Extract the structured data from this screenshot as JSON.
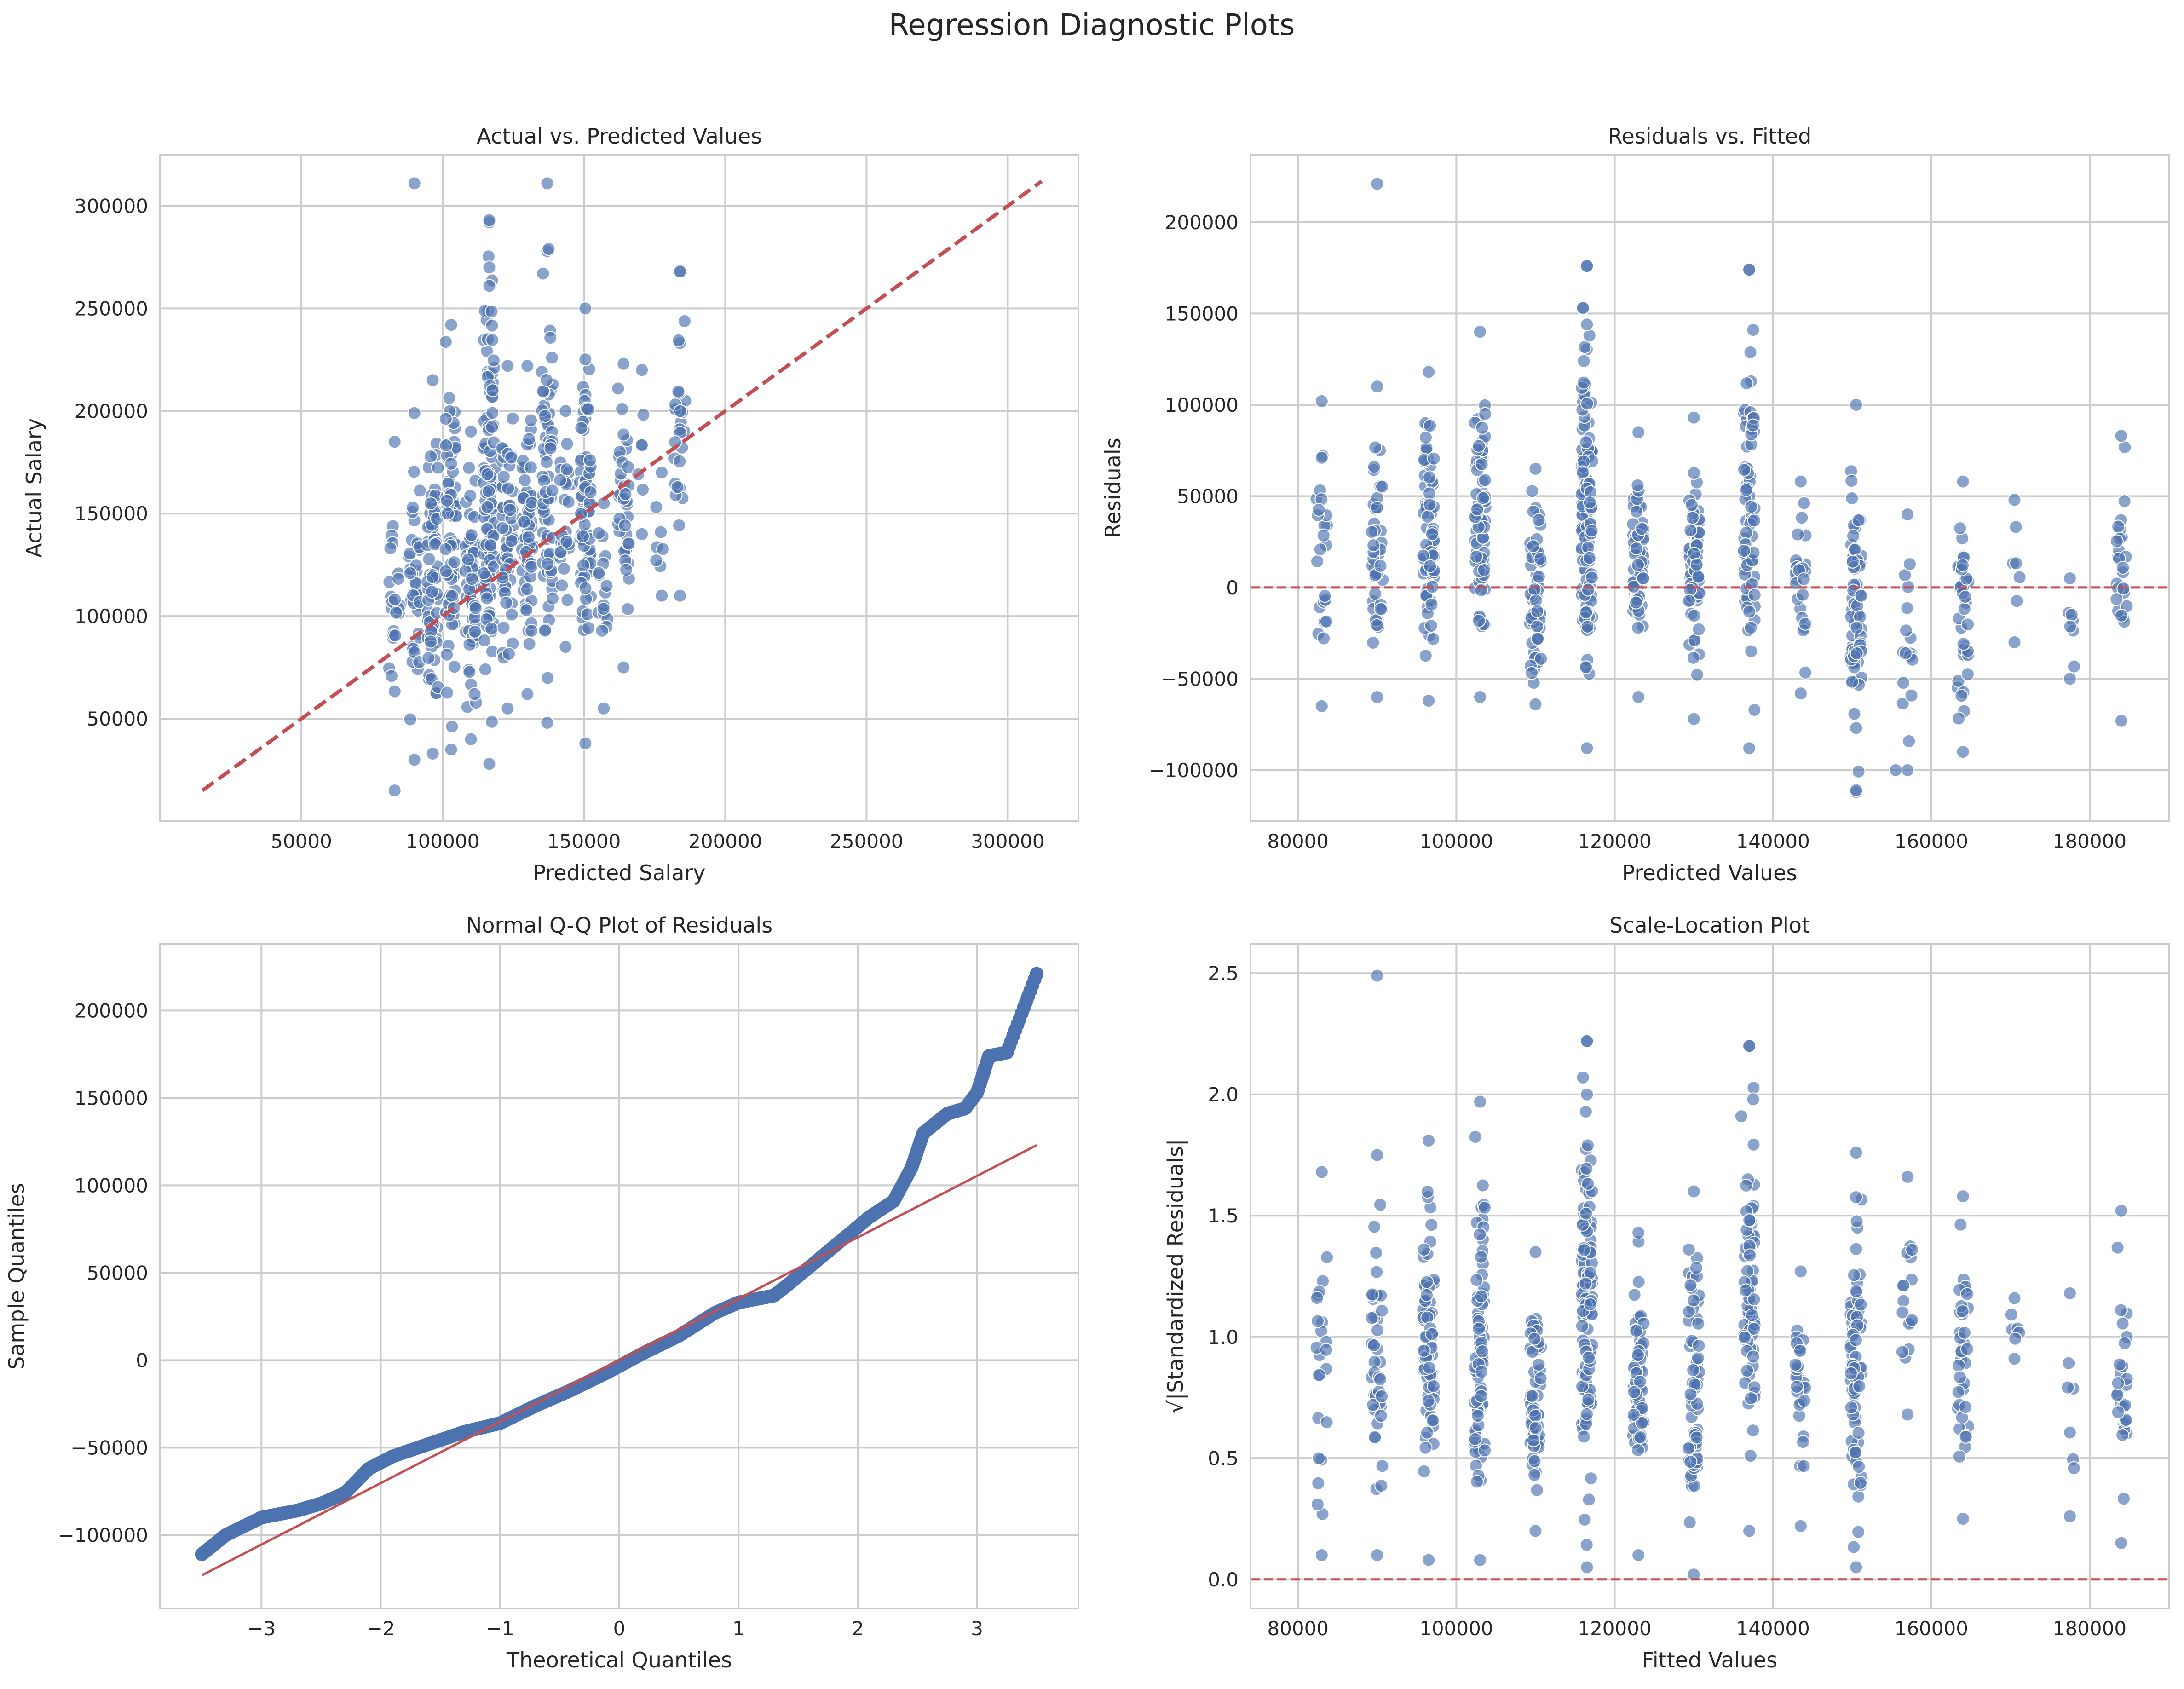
{
  "figure_title": "Regression Diagnostic Plots",
  "colors": {
    "points": "#4c72b0",
    "reference": "#c44e52",
    "grid": "#cccccc"
  },
  "chart_data": [
    {
      "id": "avp",
      "type": "scatter",
      "title": "Actual vs. Predicted Values",
      "xlabel": "Predicted Salary",
      "ylabel": "Actual Salary",
      "xlim": [
        0,
        325000
      ],
      "ylim": [
        0,
        325000
      ],
      "xticks": [
        50000,
        100000,
        150000,
        200000,
        250000,
        300000
      ],
      "yticks": [
        50000,
        100000,
        150000,
        200000,
        250000,
        300000
      ],
      "xtick_labels": [
        "50000",
        "100000",
        "150000",
        "200000",
        "250000",
        "300000"
      ],
      "ytick_labels": [
        "50000",
        "100000",
        "150000",
        "200000",
        "250000",
        "300000"
      ],
      "reference_line": {
        "style": "dashed",
        "from": [
          15000,
          15000
        ],
        "to": [
          312000,
          312000
        ]
      },
      "clusters": [
        {
          "x": 83000,
          "n": 22,
          "y_range": [
            15000,
            185000
          ]
        },
        {
          "x": 90000,
          "n": 40,
          "y_range": [
            30000,
            199000
          ]
        },
        {
          "x": 96500,
          "n": 70,
          "y_range": [
            33000,
            215000
          ]
        },
        {
          "x": 103000,
          "n": 70,
          "y_range": [
            35000,
            242000
          ]
        },
        {
          "x": 110000,
          "n": 60,
          "y_range": [
            40000,
            190000
          ]
        },
        {
          "x": 116500,
          "n": 110,
          "y_range": [
            28000,
            292000
          ]
        },
        {
          "x": 123000,
          "n": 60,
          "y_range": [
            55000,
            222000
          ]
        },
        {
          "x": 130000,
          "n": 60,
          "y_range": [
            62000,
            222000
          ]
        },
        {
          "x": 137000,
          "n": 65,
          "y_range": [
            48000,
            278000
          ]
        },
        {
          "x": 143500,
          "n": 25,
          "y_range": [
            85000,
            200000
          ]
        },
        {
          "x": 150500,
          "n": 70,
          "y_range": [
            38000,
            250000
          ]
        },
        {
          "x": 157000,
          "n": 15,
          "y_range": [
            55000,
            155000
          ]
        },
        {
          "x": 164000,
          "n": 35,
          "y_range": [
            75000,
            223000
          ]
        },
        {
          "x": 170500,
          "n": 5,
          "y_range": [
            140000,
            220000
          ]
        },
        {
          "x": 177500,
          "n": 6,
          "y_range": [
            110000,
            170000
          ]
        },
        {
          "x": 184000,
          "n": 25,
          "y_range": [
            110000,
            268000
          ]
        }
      ],
      "highlight_points": [
        {
          "x": 90000,
          "y": 311000
        },
        {
          "x": 137000,
          "y": 311000
        },
        {
          "x": 116500,
          "y": 293000
        },
        {
          "x": 137500,
          "y": 279000
        },
        {
          "x": 135500,
          "y": 267000
        },
        {
          "x": 116500,
          "y": 261000
        },
        {
          "x": 116500,
          "y": 270000
        },
        {
          "x": 184000,
          "y": 268000
        }
      ]
    },
    {
      "id": "rvf",
      "type": "scatter",
      "title": "Residuals vs. Fitted",
      "xlabel": "Predicted Values",
      "ylabel": "Residuals",
      "xlim": [
        74000,
        190000
      ],
      "ylim": [
        -128000,
        237000
      ],
      "xticks": [
        80000,
        100000,
        120000,
        140000,
        160000,
        180000
      ],
      "yticks": [
        -100000,
        -50000,
        0,
        50000,
        100000,
        150000,
        200000
      ],
      "xtick_labels": [
        "80000",
        "100000",
        "120000",
        "140000",
        "160000",
        "180000"
      ],
      "ytick_labels": [
        "−100000",
        "−50000",
        "0",
        "50000",
        "100000",
        "150000",
        "200000"
      ],
      "reference_line": {
        "style": "dashed",
        "y": 0
      },
      "clusters": [
        {
          "x": 83000,
          "n": 22,
          "y_range": [
            -65000,
            102000
          ]
        },
        {
          "x": 90000,
          "n": 40,
          "y_range": [
            -60000,
            110000
          ]
        },
        {
          "x": 96500,
          "n": 70,
          "y_range": [
            -62000,
            118000
          ]
        },
        {
          "x": 103000,
          "n": 70,
          "y_range": [
            -60000,
            140000
          ]
        },
        {
          "x": 110000,
          "n": 60,
          "y_range": [
            -64000,
            65000
          ]
        },
        {
          "x": 116500,
          "n": 110,
          "y_range": [
            -88000,
            176000
          ]
        },
        {
          "x": 123000,
          "n": 60,
          "y_range": [
            -60000,
            85000
          ]
        },
        {
          "x": 130000,
          "n": 60,
          "y_range": [
            -72000,
            93000
          ]
        },
        {
          "x": 137000,
          "n": 65,
          "y_range": [
            -88000,
            174000
          ]
        },
        {
          "x": 143500,
          "n": 25,
          "y_range": [
            -58000,
            58000
          ]
        },
        {
          "x": 150500,
          "n": 70,
          "y_range": [
            -112000,
            100000
          ]
        },
        {
          "x": 157000,
          "n": 15,
          "y_range": [
            -100000,
            40000
          ]
        },
        {
          "x": 164000,
          "n": 35,
          "y_range": [
            -90000,
            58000
          ]
        },
        {
          "x": 170500,
          "n": 5,
          "y_range": [
            -30000,
            48000
          ]
        },
        {
          "x": 177500,
          "n": 6,
          "y_range": [
            -50000,
            5000
          ]
        },
        {
          "x": 184000,
          "n": 25,
          "y_range": [
            -73000,
            83000
          ]
        }
      ],
      "highlight_points": [
        {
          "x": 90000,
          "y": 221000
        },
        {
          "x": 116500,
          "y": 176000
        },
        {
          "x": 137000,
          "y": 174000
        },
        {
          "x": 116000,
          "y": 153000
        },
        {
          "x": 116500,
          "y": 144000
        },
        {
          "x": 137500,
          "y": 141000
        },
        {
          "x": 150500,
          "y": -111000
        },
        {
          "x": 155500,
          "y": -100000
        }
      ]
    },
    {
      "id": "qq",
      "type": "scatter",
      "title": "Normal Q-Q Plot of Residuals",
      "xlabel": "Theoretical Quantiles",
      "ylabel": "Sample Quantiles",
      "xlim": [
        -3.85,
        3.85
      ],
      "ylim": [
        -142000,
        238000
      ],
      "xticks": [
        -3,
        -2,
        -1,
        0,
        1,
        2,
        3
      ],
      "yticks": [
        -100000,
        -50000,
        0,
        50000,
        100000,
        150000,
        200000
      ],
      "xtick_labels": [
        "−3",
        "−2",
        "−1",
        "0",
        "1",
        "2",
        "3"
      ],
      "ytick_labels": [
        "−100000",
        "−50000",
        "0",
        "50000",
        "100000",
        "150000",
        "200000"
      ],
      "reference_line": {
        "style": "solid",
        "from": [
          -3.5,
          -123000
        ],
        "to": [
          3.5,
          123000
        ]
      },
      "quantile_curve": [
        {
          "x": -3.5,
          "y": -111000
        },
        {
          "x": -3.3,
          "y": -100000
        },
        {
          "x": -3.0,
          "y": -90000
        },
        {
          "x": -2.7,
          "y": -86000
        },
        {
          "x": -2.5,
          "y": -82000
        },
        {
          "x": -2.3,
          "y": -76000
        },
        {
          "x": -2.1,
          "y": -62000
        },
        {
          "x": -1.9,
          "y": -55000
        },
        {
          "x": -1.6,
          "y": -48000
        },
        {
          "x": -1.3,
          "y": -41000
        },
        {
          "x": -1.0,
          "y": -36000
        },
        {
          "x": -0.7,
          "y": -26000
        },
        {
          "x": -0.4,
          "y": -17000
        },
        {
          "x": -0.1,
          "y": -7000
        },
        {
          "x": 0.2,
          "y": 4000
        },
        {
          "x": 0.5,
          "y": 14000
        },
        {
          "x": 0.8,
          "y": 27000
        },
        {
          "x": 1.0,
          "y": 33000
        },
        {
          "x": 1.3,
          "y": 37000
        },
        {
          "x": 1.5,
          "y": 48000
        },
        {
          "x": 1.8,
          "y": 65000
        },
        {
          "x": 2.1,
          "y": 82000
        },
        {
          "x": 2.3,
          "y": 91000
        },
        {
          "x": 2.45,
          "y": 110000
        },
        {
          "x": 2.55,
          "y": 130000
        },
        {
          "x": 2.75,
          "y": 141000
        },
        {
          "x": 2.9,
          "y": 144000
        },
        {
          "x": 3.0,
          "y": 153000
        },
        {
          "x": 3.1,
          "y": 174000
        },
        {
          "x": 3.25,
          "y": 176000
        },
        {
          "x": 3.5,
          "y": 221000
        }
      ]
    },
    {
      "id": "scl",
      "type": "scatter",
      "title": "Scale-Location Plot",
      "xlabel": "Fitted Values",
      "ylabel": "√|Standardized Residuals|",
      "xlim": [
        74000,
        190000
      ],
      "ylim": [
        -0.12,
        2.62
      ],
      "xticks": [
        80000,
        100000,
        120000,
        140000,
        160000,
        180000
      ],
      "yticks": [
        0.0,
        0.5,
        1.0,
        1.5,
        2.0,
        2.5
      ],
      "xtick_labels": [
        "80000",
        "100000",
        "120000",
        "140000",
        "160000",
        "180000"
      ],
      "ytick_labels": [
        "0.0",
        "0.5",
        "1.0",
        "1.5",
        "2.0",
        "2.5"
      ],
      "reference_line": {
        "style": "dashed",
        "y": 0
      },
      "clusters": [
        {
          "x": 83000,
          "n": 22,
          "y_range": [
            0.1,
            1.68
          ]
        },
        {
          "x": 90000,
          "n": 40,
          "y_range": [
            0.1,
            1.75
          ]
        },
        {
          "x": 96500,
          "n": 70,
          "y_range": [
            0.08,
            1.81
          ]
        },
        {
          "x": 103000,
          "n": 70,
          "y_range": [
            0.08,
            1.97
          ]
        },
        {
          "x": 110000,
          "n": 60,
          "y_range": [
            0.2,
            1.35
          ]
        },
        {
          "x": 116500,
          "n": 110,
          "y_range": [
            0.05,
            2.22
          ]
        },
        {
          "x": 123000,
          "n": 60,
          "y_range": [
            0.1,
            1.43
          ]
        },
        {
          "x": 130000,
          "n": 60,
          "y_range": [
            0.02,
            1.6
          ]
        },
        {
          "x": 137000,
          "n": 65,
          "y_range": [
            0.2,
            2.2
          ]
        },
        {
          "x": 143500,
          "n": 25,
          "y_range": [
            0.22,
            1.27
          ]
        },
        {
          "x": 150500,
          "n": 70,
          "y_range": [
            0.05,
            1.76
          ]
        },
        {
          "x": 157000,
          "n": 15,
          "y_range": [
            0.68,
            1.66
          ]
        },
        {
          "x": 164000,
          "n": 35,
          "y_range": [
            0.25,
            1.58
          ]
        },
        {
          "x": 170500,
          "n": 5,
          "y_range": [
            0.91,
            1.16
          ]
        },
        {
          "x": 177500,
          "n": 6,
          "y_range": [
            0.26,
            1.18
          ]
        },
        {
          "x": 184000,
          "n": 25,
          "y_range": [
            0.15,
            1.52
          ]
        }
      ],
      "highlight_points": [
        {
          "x": 90000,
          "y": 2.49
        },
        {
          "x": 116500,
          "y": 2.22
        },
        {
          "x": 137000,
          "y": 2.2
        },
        {
          "x": 116000,
          "y": 2.07
        },
        {
          "x": 116500,
          "y": 2.0
        },
        {
          "x": 137500,
          "y": 1.98
        },
        {
          "x": 136000,
          "y": 1.91
        }
      ]
    }
  ]
}
